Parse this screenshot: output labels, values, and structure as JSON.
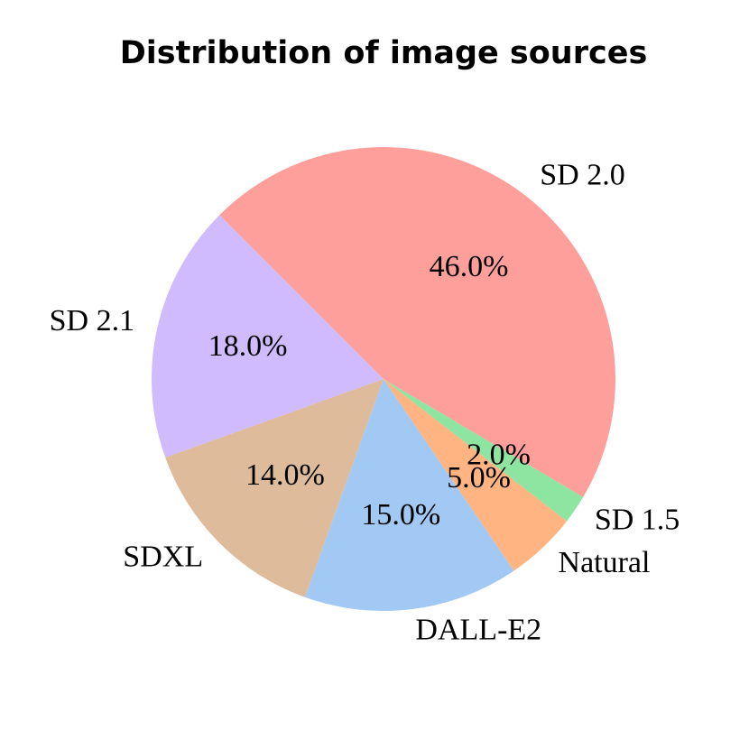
{
  "chart_data": {
    "type": "pie",
    "title": "Distribution of image sources",
    "categories": [
      "SD 2.1",
      "SDXL",
      "DALL-E2",
      "Natural",
      "SD 1.5",
      "SD 2.0"
    ],
    "values": [
      18,
      14,
      15,
      5,
      2,
      46
    ],
    "value_labels": [
      "18.0%",
      "14.0%",
      "15.0%",
      "5.0%",
      "2.0%",
      "46.0%"
    ],
    "colors": [
      "#d0bbff",
      "#debb9b",
      "#a1c9f4",
      "#ffb482",
      "#8de5a1",
      "#ff9f9b"
    ]
  }
}
